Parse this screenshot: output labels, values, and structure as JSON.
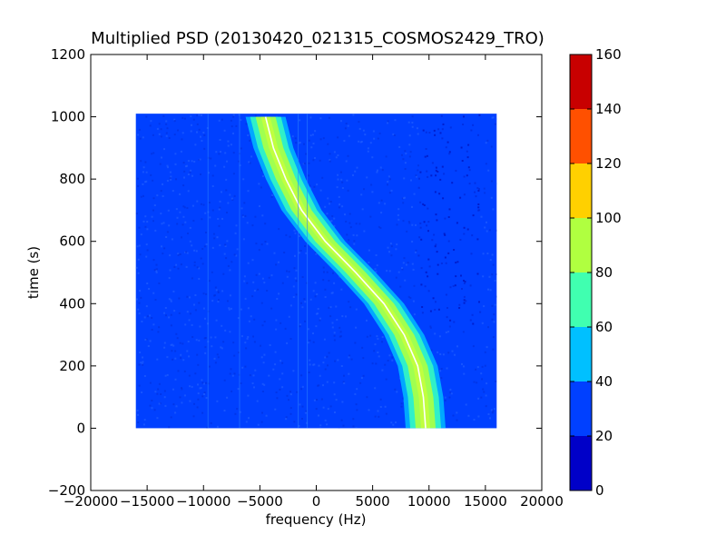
{
  "chart_data": {
    "type": "heatmap",
    "title": "Multiplied PSD (20130420_021315_COSMOS2429_TRO)",
    "xlabel": "frequency (Hz)",
    "ylabel": "time (s)",
    "xlim": [
      -20000,
      20000
    ],
    "ylim": [
      -200,
      1200
    ],
    "xticks": [
      -20000,
      -15000,
      -10000,
      -5000,
      0,
      5000,
      10000,
      15000,
      20000
    ],
    "xtick_labels": [
      "−20000",
      "−15000",
      "−10000",
      "−5000",
      "0",
      "5000",
      "10000",
      "15000",
      "20000"
    ],
    "yticks": [
      -200,
      0,
      200,
      400,
      600,
      800,
      1000,
      1200
    ],
    "ytick_labels": [
      "−200",
      "0",
      "200",
      "400",
      "600",
      "800",
      "1000",
      "1200"
    ],
    "grid": false,
    "data_extent": {
      "freq_range": [
        -16000,
        16000
      ],
      "time_range": [
        0,
        1010
      ]
    },
    "background_level": 20,
    "signal_track": [
      {
        "time": 1000,
        "freq": -4500
      },
      {
        "time": 900,
        "freq": -3800
      },
      {
        "time": 800,
        "freq": -2700
      },
      {
        "time": 700,
        "freq": -1300
      },
      {
        "time": 600,
        "freq": 800
      },
      {
        "time": 500,
        "freq": 3500
      },
      {
        "time": 400,
        "freq": 6000
      },
      {
        "time": 300,
        "freq": 7800
      },
      {
        "time": 200,
        "freq": 9000
      },
      {
        "time": 100,
        "freq": 9500
      },
      {
        "time": 0,
        "freq": 9700
      }
    ],
    "colorbar": {
      "ticks": [
        0,
        20,
        40,
        60,
        80,
        100,
        120,
        140,
        160
      ],
      "tick_labels": [
        "0",
        "20",
        "40",
        "60",
        "80",
        "100",
        "120",
        "140",
        "160"
      ],
      "colors": [
        "#0000c8",
        "#0040ff",
        "#00c0ff",
        "#40ffb0",
        "#b0ff40",
        "#ffd000",
        "#ff5000",
        "#c80000"
      ]
    }
  }
}
